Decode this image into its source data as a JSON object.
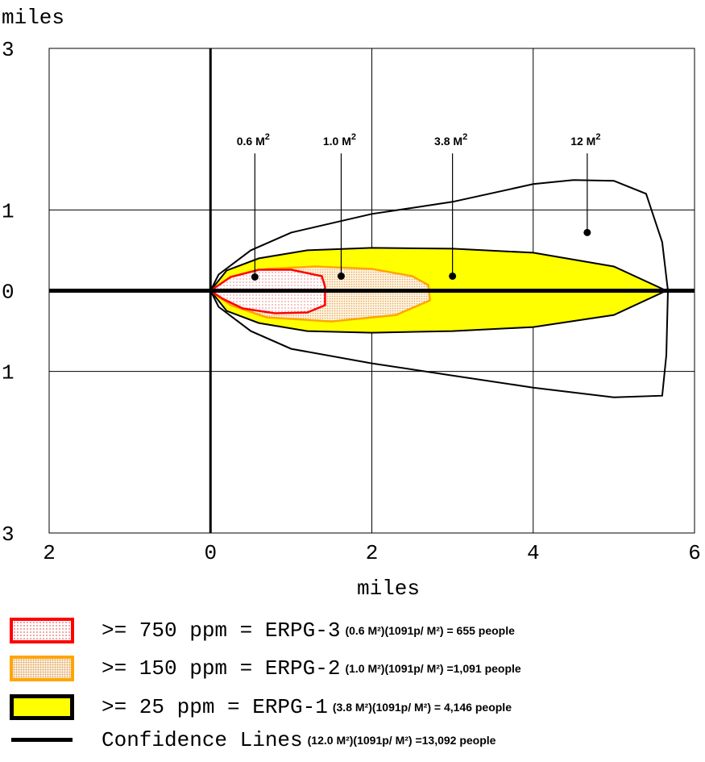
{
  "chart_data": {
    "type": "area",
    "title": "",
    "ylabel": "miles",
    "xlabel": "miles",
    "xlim": [
      -2,
      6
    ],
    "ylim": [
      -3,
      3
    ],
    "x_ticks": [
      {
        "value": -2,
        "label": "2"
      },
      {
        "value": 0,
        "label": "0"
      },
      {
        "value": 2,
        "label": "2"
      },
      {
        "value": 4,
        "label": "4"
      },
      {
        "value": 6,
        "label": "6"
      }
    ],
    "y_ticks": [
      {
        "value": 3,
        "label": "3"
      },
      {
        "value": 1,
        "label": "1"
      },
      {
        "value": 0,
        "label": "0"
      },
      {
        "value": -1,
        "label": "1"
      },
      {
        "value": -3,
        "label": "3"
      }
    ],
    "grid": true,
    "zones": [
      {
        "name": "erpg1",
        "fill": "#ffff00",
        "stroke": "#000000",
        "points": [
          [
            0,
            0
          ],
          [
            0.2,
            0.25
          ],
          [
            0.6,
            0.4
          ],
          [
            1.2,
            0.5
          ],
          [
            2,
            0.53
          ],
          [
            3,
            0.52
          ],
          [
            4,
            0.47
          ],
          [
            5,
            0.3
          ],
          [
            5.65,
            0
          ],
          [
            5,
            -0.3
          ],
          [
            4,
            -0.45
          ],
          [
            3,
            -0.5
          ],
          [
            2,
            -0.52
          ],
          [
            1.2,
            -0.5
          ],
          [
            0.6,
            -0.4
          ],
          [
            0.2,
            -0.25
          ]
        ]
      },
      {
        "name": "erpg2",
        "fill": "#fbe3c2",
        "stroke": "#ffa500",
        "points": [
          [
            0,
            0
          ],
          [
            0.25,
            0.17
          ],
          [
            0.7,
            0.27
          ],
          [
            1.3,
            0.3
          ],
          [
            2,
            0.27
          ],
          [
            2.5,
            0.18
          ],
          [
            2.7,
            0.07
          ],
          [
            2.72,
            -0.12
          ],
          [
            2.3,
            -0.3
          ],
          [
            1.5,
            -0.38
          ],
          [
            0.7,
            -0.33
          ],
          [
            0.25,
            -0.18
          ]
        ]
      },
      {
        "name": "erpg3",
        "fill": "#fde4e4",
        "stroke": "#ff0000",
        "points": [
          [
            0,
            0
          ],
          [
            0.25,
            0.17
          ],
          [
            0.6,
            0.26
          ],
          [
            1,
            0.26
          ],
          [
            1.38,
            0.18
          ],
          [
            1.42,
            0.05
          ],
          [
            1.42,
            -0.18
          ],
          [
            1.2,
            -0.27
          ],
          [
            0.8,
            -0.28
          ],
          [
            0.4,
            -0.22
          ],
          [
            0.15,
            -0.1
          ]
        ]
      }
    ],
    "confidence_lines": [
      [
        0,
        0
      ],
      [
        0.1,
        0.2
      ],
      [
        0.5,
        0.5
      ],
      [
        1,
        0.72
      ],
      [
        2,
        0.95
      ],
      [
        3,
        1.1
      ],
      [
        4,
        1.32
      ],
      [
        4.5,
        1.37
      ],
      [
        5,
        1.36
      ],
      [
        5.4,
        1.2
      ],
      [
        5.6,
        0.6
      ],
      [
        5.67,
        0
      ],
      [
        5.65,
        -0.8
      ],
      [
        5.6,
        -1.3
      ],
      [
        5,
        -1.32
      ],
      [
        4,
        -1.2
      ],
      [
        3,
        -1.05
      ],
      [
        2,
        -0.9
      ],
      [
        1,
        -0.72
      ],
      [
        0.5,
        -0.5
      ],
      [
        0.1,
        -0.2
      ],
      [
        0,
        0
      ]
    ],
    "area_labels": [
      {
        "value": "0.6",
        "unit": "M",
        "sup": "2",
        "x": 0.55,
        "label_y": 1.8,
        "point_y": 0.17
      },
      {
        "value": "1.0",
        "unit": "M",
        "sup": "2",
        "x": 1.62,
        "label_y": 1.8,
        "point_y": 0.18
      },
      {
        "value": "3.8",
        "unit": "M",
        "sup": "2",
        "x": 3.0,
        "label_y": 1.8,
        "point_y": 0.18
      },
      {
        "value": "12",
        "unit": "M",
        "sup": "2",
        "x": 4.67,
        "label_y": 1.8,
        "point_y": 0.72
      }
    ]
  },
  "legend": [
    {
      "main": ">= 750 ppm = ERPG-3",
      "detail": "(0.6 M²)(1091p/ M²) = 655 people"
    },
    {
      "main": ">= 150 ppm = ERPG-2",
      "detail": "(1.0 M²)(1091p/ M²) =1,091 people"
    },
    {
      "main": ">= 25 ppm = ERPG-1",
      "detail": "(3.8 M²)(1091p/ M²) = 4,146 people"
    },
    {
      "main": "Confidence Lines",
      "detail": "(12.0 M²)(1091p/ M²) =13,092 people"
    }
  ]
}
